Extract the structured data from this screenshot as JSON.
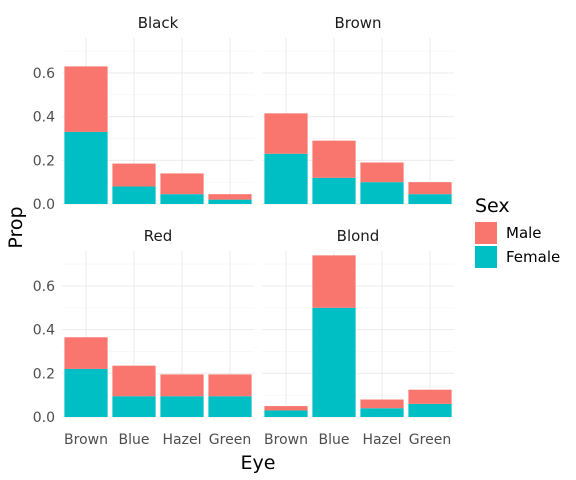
{
  "chart_data": {
    "type": "bar",
    "stacked": true,
    "facet_by": "Hair",
    "panels": [
      {
        "title": "Black",
        "categories": [
          "Brown",
          "Blue",
          "Hazel",
          "Green"
        ],
        "series": [
          {
            "name": "Female",
            "values": [
              0.33,
              0.08,
              0.045,
              0.02
            ]
          },
          {
            "name": "Male",
            "values": [
              0.3,
              0.105,
              0.095,
              0.025
            ]
          }
        ]
      },
      {
        "title": "Brown",
        "categories": [
          "Brown",
          "Blue",
          "Hazel",
          "Green"
        ],
        "series": [
          {
            "name": "Female",
            "values": [
              0.23,
              0.12,
              0.1,
              0.045
            ]
          },
          {
            "name": "Male",
            "values": [
              0.185,
              0.17,
              0.09,
              0.055
            ]
          }
        ]
      },
      {
        "title": "Red",
        "categories": [
          "Brown",
          "Blue",
          "Hazel",
          "Green"
        ],
        "series": [
          {
            "name": "Female",
            "values": [
              0.22,
              0.095,
              0.095,
              0.095
            ]
          },
          {
            "name": "Male",
            "values": [
              0.145,
              0.14,
              0.1,
              0.1
            ]
          }
        ]
      },
      {
        "title": "Blond",
        "categories": [
          "Brown",
          "Blue",
          "Hazel",
          "Green"
        ],
        "series": [
          {
            "name": "Female",
            "values": [
              0.03,
              0.5,
              0.04,
              0.06
            ]
          },
          {
            "name": "Male",
            "values": [
              0.02,
              0.24,
              0.04,
              0.065
            ]
          }
        ]
      }
    ],
    "xlabel": "Eye",
    "ylabel": "Prop",
    "ylim": [
      0,
      0.76
    ],
    "yticks": [
      0.0,
      0.2,
      0.4,
      0.6
    ],
    "ytick_labels": [
      "0.0",
      "0.2",
      "0.4",
      "0.6"
    ],
    "grid": true,
    "legend": {
      "title": "Sex",
      "placement": "right",
      "entries": [
        {
          "name": "Male",
          "color": "#F8766D"
        },
        {
          "name": "Female",
          "color": "#00BFC4"
        }
      ]
    },
    "colors": {
      "Male": "#F8766D",
      "Female": "#00BFC4"
    }
  }
}
